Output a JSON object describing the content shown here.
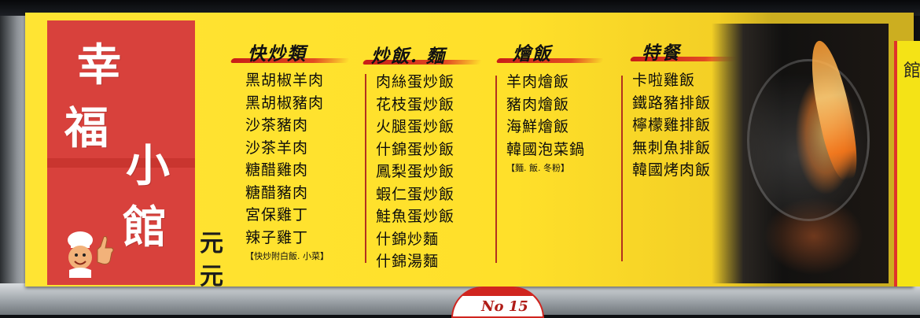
{
  "shop": {
    "name_chars": [
      "幸",
      "福",
      "小",
      "館"
    ]
  },
  "price_fragments": [
    "元",
    "元"
  ],
  "sections": [
    {
      "heading": "快炒類",
      "items": [
        "黑胡椒羊肉",
        "黑胡椒豬肉",
        "沙茶豬肉",
        "沙茶羊肉",
        "糖醋雞肉",
        "糖醋豬肉",
        "宮保雞丁",
        "辣子雞丁"
      ],
      "note": "【快炒附白飯. 小菜】"
    },
    {
      "heading": "炒飯. 麵",
      "items": [
        "肉絲蛋炒飯",
        "花枝蛋炒飯",
        "火腿蛋炒飯",
        "什錦蛋炒飯",
        "鳳梨蛋炒飯",
        "蝦仁蛋炒飯",
        "鮭魚蛋炒飯",
        "什錦炒麵",
        "什錦湯麵"
      ]
    },
    {
      "heading": "燴飯",
      "items": [
        "羊肉燴飯",
        "豬肉燴飯",
        "海鮮燴飯",
        "韓國泡菜鍋"
      ],
      "note": "【麵. 飯. 冬粉】"
    },
    {
      "heading": "特餐",
      "items": [
        "卡啦雞飯",
        "鐵路豬排飯",
        "檸檬雞排飯",
        "無刺魚排飯",
        "韓國烤肉飯"
      ]
    }
  ],
  "stall_number": "No 15",
  "neighbor_sign_fragment": "館",
  "colors": {
    "board": "#ffe433",
    "logo_panel": "#d8413c",
    "brush": "#c81d18",
    "text": "#0c0c0c"
  },
  "icons": [
    "chef-mascot-icon",
    "flame-wok-photo"
  ]
}
